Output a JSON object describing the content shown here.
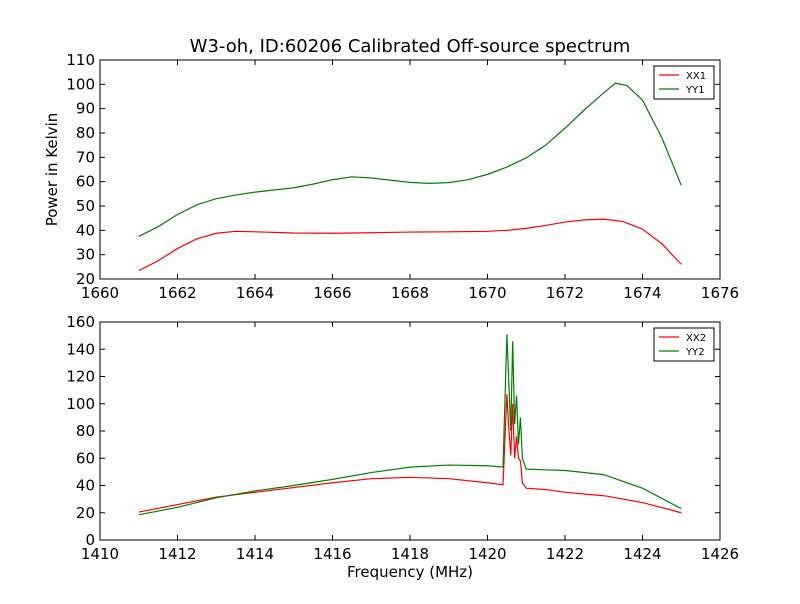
{
  "figure": {
    "title": "W3-oh, ID:60206 Calibrated Off-source spectrum"
  },
  "chart_data": [
    {
      "type": "line",
      "title": "W3-oh, ID:60206 Calibrated Off-source spectrum",
      "xlabel": "",
      "ylabel": "Power in Kelvin",
      "xlim": [
        1660,
        1676
      ],
      "ylim": [
        20,
        110
      ],
      "xticks": [
        1660,
        1662,
        1664,
        1666,
        1668,
        1670,
        1672,
        1674,
        1676
      ],
      "yticks": [
        20,
        30,
        40,
        50,
        60,
        70,
        80,
        90,
        100,
        110
      ],
      "grid": false,
      "legend": "top-right",
      "series": [
        {
          "name": "XX1",
          "color": "#ff0000",
          "x": [
            1661.0,
            1661.5,
            1662.0,
            1662.5,
            1663.0,
            1663.5,
            1664.0,
            1665.0,
            1666.0,
            1667.0,
            1668.0,
            1669.0,
            1670.0,
            1670.5,
            1671.0,
            1671.5,
            1672.0,
            1672.5,
            1673.0,
            1673.5,
            1674.0,
            1674.5,
            1675.0
          ],
          "values": [
            23.5,
            27.5,
            32.5,
            36.5,
            38.8,
            39.6,
            39.4,
            38.9,
            38.8,
            39.0,
            39.3,
            39.4,
            39.6,
            40.0,
            40.8,
            42.0,
            43.4,
            44.3,
            44.6,
            43.6,
            40.5,
            34.5,
            26.0
          ]
        },
        {
          "name": "YY1",
          "color": "#008000",
          "x": [
            1661.0,
            1661.5,
            1662.0,
            1662.5,
            1663.0,
            1663.5,
            1664.0,
            1665.0,
            1665.5,
            1666.0,
            1666.5,
            1667.0,
            1668.0,
            1668.5,
            1669.0,
            1669.5,
            1670.0,
            1670.5,
            1671.0,
            1671.5,
            1672.0,
            1672.5,
            1673.0,
            1673.3,
            1673.6,
            1674.0,
            1674.5,
            1675.0
          ],
          "values": [
            37.5,
            41.5,
            46.5,
            50.5,
            53.0,
            54.5,
            55.7,
            57.5,
            59.0,
            60.8,
            62.0,
            61.5,
            59.7,
            59.3,
            59.6,
            60.8,
            63.0,
            66.0,
            69.8,
            75.0,
            82.0,
            89.5,
            96.5,
            100.5,
            99.5,
            93.5,
            78.0,
            58.5
          ]
        }
      ]
    },
    {
      "type": "line",
      "title": "",
      "xlabel": "Frequency (MHz)",
      "ylabel": "",
      "xlim": [
        1410,
        1426
      ],
      "ylim": [
        0,
        160
      ],
      "xticks": [
        1410,
        1412,
        1414,
        1416,
        1418,
        1420,
        1422,
        1424,
        1426
      ],
      "yticks": [
        0,
        20,
        40,
        60,
        80,
        100,
        120,
        140,
        160
      ],
      "grid": false,
      "legend": "top-right",
      "series": [
        {
          "name": "XX2",
          "color": "#ff0000",
          "x": [
            1411.0,
            1412.0,
            1413.0,
            1414.0,
            1415.0,
            1416.0,
            1417.0,
            1418.0,
            1419.0,
            1420.0,
            1420.4,
            1420.5,
            1420.55,
            1420.6,
            1420.65,
            1420.7,
            1420.75,
            1420.8,
            1420.85,
            1420.9,
            1421.0,
            1421.5,
            1422.0,
            1423.0,
            1424.0,
            1425.0
          ],
          "values": [
            20.5,
            26.0,
            31.5,
            35.0,
            38.5,
            42.0,
            45.0,
            46.0,
            45.0,
            42.0,
            40.5,
            107.0,
            82.0,
            62.0,
            100.0,
            60.0,
            76.0,
            60.0,
            58.0,
            42.0,
            38.0,
            37.0,
            35.0,
            32.5,
            27.5,
            20.0
          ]
        },
        {
          "name": "YY2",
          "color": "#008000",
          "x": [
            1411.0,
            1412.0,
            1413.0,
            1414.0,
            1415.0,
            1416.0,
            1417.0,
            1418.0,
            1419.0,
            1420.0,
            1420.4,
            1420.5,
            1420.6,
            1420.65,
            1420.7,
            1420.75,
            1420.8,
            1420.85,
            1420.9,
            1421.0,
            1421.5,
            1422.0,
            1423.0,
            1424.0,
            1425.0
          ],
          "values": [
            18.5,
            24.0,
            31.0,
            36.0,
            40.0,
            44.5,
            49.5,
            53.5,
            55.0,
            54.5,
            53.5,
            151.0,
            80.0,
            146.0,
            85.0,
            106.0,
            70.0,
            90.0,
            60.0,
            52.0,
            51.5,
            51.0,
            48.0,
            38.0,
            23.0
          ]
        }
      ]
    }
  ]
}
